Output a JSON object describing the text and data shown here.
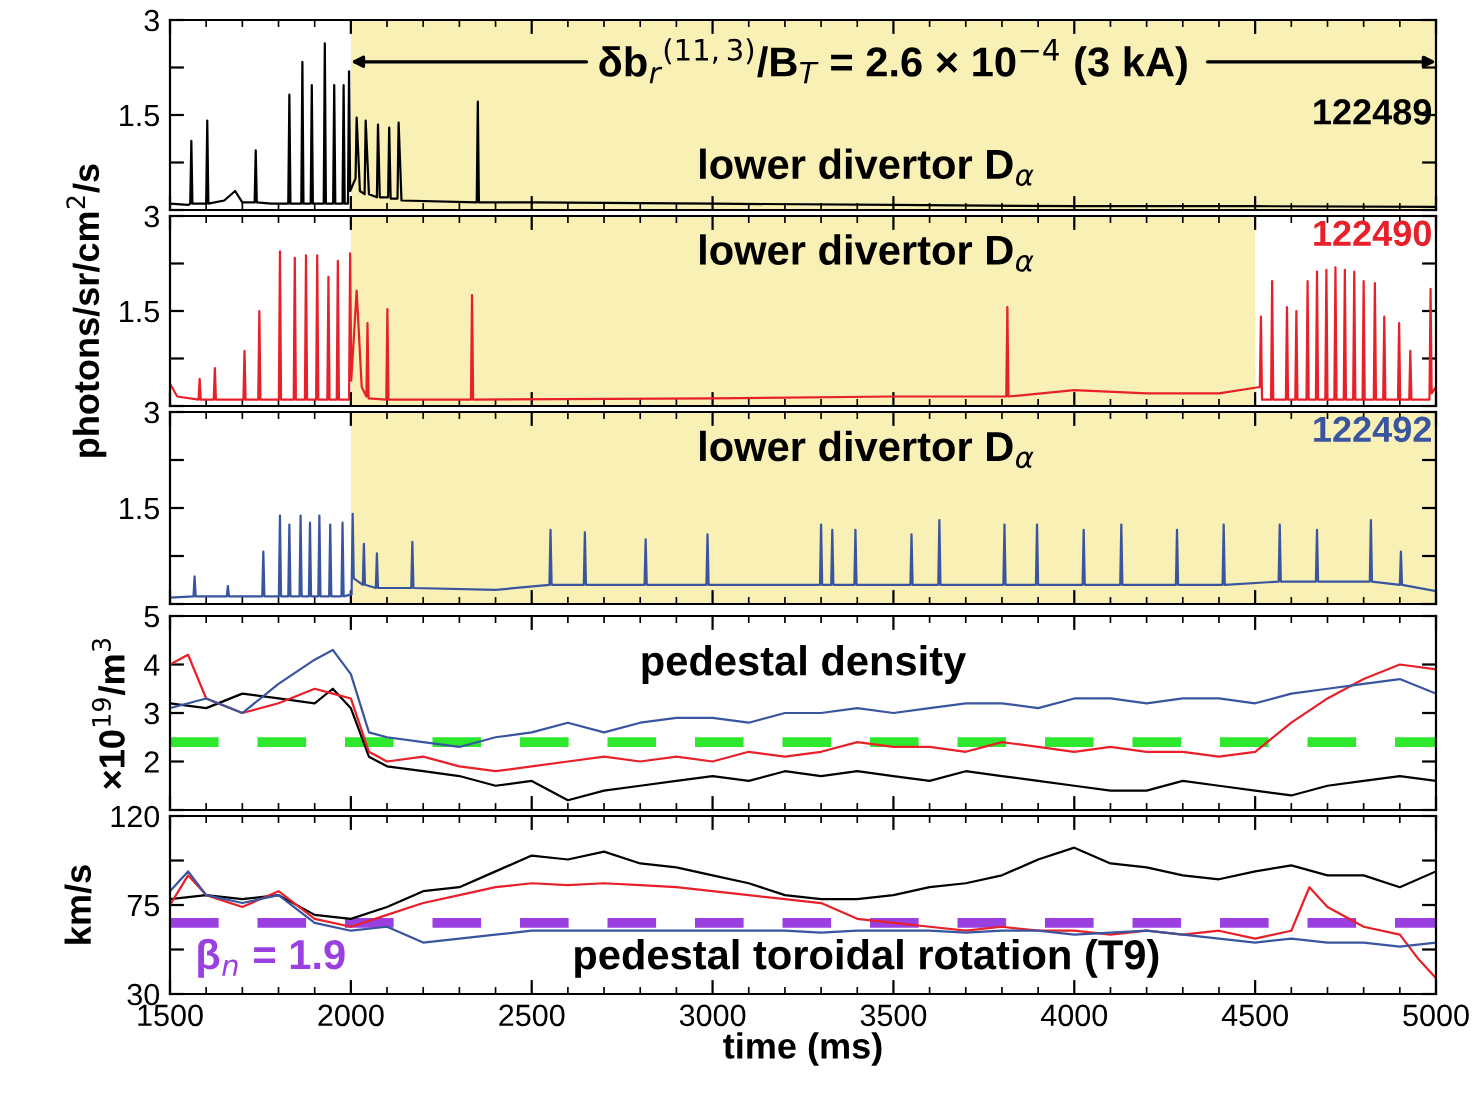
{
  "chart_data": [
    {
      "type": "line",
      "xlim": [
        1500,
        5000
      ],
      "ylim": [
        0,
        3
      ],
      "yticks": [
        {
          "value": 0,
          "label": null
        },
        {
          "value": 0.75,
          "label": null
        },
        1.5,
        {
          "value": 2.25,
          "label": null
        },
        3
      ],
      "tick_labels": "y",
      "grid": false,
      "legend": "right",
      "bands": [
        {
          "axis": "x",
          "from": 2000,
          "to": 5000,
          "color": "#f8f0b4",
          "label": "δb$_{r}$$^{(11,3)}$/B$_{T}$ = 2.6 × 10$^{−4}$ (3 kA)"
        }
      ],
      "annotations": [
        "lower divertor D$_{α}$"
      ],
      "series": [
        {
          "name": "122489",
          "color": "#000000",
          "x": [
            1500,
            1550,
            1556,
            1559,
            1562,
            1600,
            1603,
            1606,
            1650,
            1680,
            1700,
            1734,
            1737,
            1740,
            1780,
            1827,
            1830,
            1833,
            1863,
            1866,
            1869,
            1889,
            1892,
            1895,
            1925,
            1928,
            1931,
            1951,
            1954,
            1957,
            1977,
            1980,
            1983,
            1992,
            1995,
            1998,
            2013,
            2016,
            2025,
            2038,
            2041,
            2050,
            2072,
            2075,
            2080,
            2103,
            2106,
            2110,
            2129,
            2132,
            2140,
            2348,
            2351,
            2354,
            2500,
            3000,
            3500,
            4000,
            4500,
            5000
          ],
          "values": [
            0.1,
            0.08,
            0.1,
            1.09,
            0.1,
            0.1,
            1.41,
            0.1,
            0.15,
            0.3,
            0.12,
            0.12,
            0.94,
            0.12,
            0.1,
            0.1,
            1.82,
            0.1,
            0.1,
            2.34,
            0.1,
            0.1,
            1.97,
            0.1,
            0.1,
            2.63,
            0.1,
            0.1,
            1.97,
            0.1,
            0.1,
            1.97,
            0.1,
            0.1,
            2.19,
            0.3,
            0.5,
            1.46,
            0.3,
            0.25,
            1.41,
            0.25,
            0.2,
            1.35,
            0.2,
            0.2,
            1.3,
            0.18,
            0.18,
            1.38,
            0.15,
            0.12,
            1.71,
            0.12,
            0.12,
            0.1,
            0.08,
            0.06,
            0.06,
            0.05
          ]
        }
      ]
    },
    {
      "type": "line",
      "xlim": [
        1500,
        5000
      ],
      "ylim": [
        0,
        3
      ],
      "yticks": [
        {
          "value": 0,
          "label": null
        },
        {
          "value": 0.75,
          "label": null
        },
        1.5,
        {
          "value": 2.25,
          "label": null
        },
        3
      ],
      "tick_labels": "y",
      "grid": false,
      "legend": "top right",
      "ylabel": "photons/sr/cm$^{2}$/s",
      "bands": [
        {
          "axis": "x",
          "from": 2000,
          "to": 4500,
          "color": "#f8f0b4"
        }
      ],
      "annotations": [
        "lower divertor D$_{α}$"
      ],
      "series": [
        {
          "name": "122490",
          "color": "#e8202a",
          "x": [
            1500,
            1520,
            1579,
            1582,
            1585,
            1621,
            1624,
            1627,
            1703,
            1706,
            1709,
            1744,
            1747,
            1750,
            1801,
            1804,
            1807,
            1842,
            1845,
            1848,
            1873,
            1876,
            1879,
            1904,
            1907,
            1910,
            1935,
            1938,
            1941,
            1961,
            1964,
            1967,
            1995,
            1998,
            2001,
            2016,
            2030,
            2043,
            2046,
            2049,
            2098,
            2101,
            2104,
            2332,
            2335,
            2338,
            3000,
            3500,
            3812,
            3815,
            3818,
            4000,
            4200,
            4400,
            4513,
            4516,
            4519,
            4544,
            4547,
            4550,
            4585,
            4588,
            4591,
            4611,
            4614,
            4617,
            4642,
            4645,
            4648,
            4668,
            4671,
            4674,
            4694,
            4697,
            4700,
            4719,
            4722,
            4725,
            4745,
            4748,
            4751,
            4771,
            4774,
            4777,
            4797,
            4800,
            4803,
            4828,
            4831,
            4834,
            4854,
            4857,
            4860,
            4895,
            4898,
            4901,
            4926,
            4929,
            4932,
            4982,
            4985,
            4988,
            5000
          ],
          "values": [
            0.35,
            0.15,
            0.1,
            0.43,
            0.1,
            0.1,
            0.6,
            0.1,
            0.1,
            0.87,
            0.1,
            0.1,
            1.5,
            0.1,
            0.1,
            2.44,
            0.1,
            0.1,
            2.34,
            0.1,
            0.1,
            2.38,
            0.1,
            0.1,
            2.38,
            0.1,
            0.1,
            2.04,
            0.1,
            0.1,
            2.29,
            0.1,
            0.1,
            2.41,
            0.4,
            1.82,
            0.3,
            0.15,
            1.31,
            0.12,
            0.1,
            1.53,
            0.1,
            0.1,
            1.75,
            0.1,
            0.12,
            0.15,
            0.15,
            1.56,
            0.15,
            0.25,
            0.2,
            0.2,
            0.3,
            1.41,
            0.1,
            0.1,
            1.97,
            0.1,
            0.1,
            1.56,
            0.1,
            0.1,
            1.5,
            0.1,
            0.1,
            1.97,
            0.1,
            0.1,
            2.12,
            0.1,
            0.1,
            2.15,
            0.1,
            0.1,
            2.19,
            0.1,
            0.1,
            2.15,
            0.1,
            0.1,
            2.12,
            0.1,
            0.1,
            1.97,
            0.1,
            0.1,
            1.94,
            0.1,
            0.1,
            1.41,
            0.1,
            0.1,
            1.31,
            0.1,
            0.1,
            0.87,
            0.1,
            0.1,
            1.85,
            0.2,
            0.3
          ]
        }
      ]
    },
    {
      "type": "line",
      "xlim": [
        1500,
        5000
      ],
      "ylim": [
        0,
        3
      ],
      "yticks": [
        {
          "value": 0,
          "label": null
        },
        {
          "value": 0.75,
          "label": null
        },
        1.5,
        {
          "value": 2.25,
          "label": null
        },
        3
      ],
      "tick_labels": "y",
      "grid": false,
      "legend": "top right",
      "bands": [
        {
          "axis": "x",
          "from": 2000,
          "to": 5000,
          "color": "#f8f0b4"
        }
      ],
      "annotations": [
        "lower divertor D$_{α}$"
      ],
      "series": [
        {
          "name": "122492",
          "color": "#3a55a0",
          "x": [
            1500,
            1565,
            1568,
            1571,
            1657,
            1660,
            1663,
            1755,
            1758,
            1761,
            1801,
            1804,
            1807,
            1827,
            1830,
            1833,
            1858,
            1861,
            1864,
            1884,
            1887,
            1890,
            1910,
            1913,
            1916,
            1940,
            1943,
            1946,
            1974,
            1977,
            1980,
            2002,
            2005,
            2008,
            2033,
            2036,
            2039,
            2069,
            2072,
            2075,
            2167,
            2170,
            2173,
            2400,
            2549,
            2552,
            2555,
            2644,
            2647,
            2650,
            2812,
            2815,
            2818,
            2983,
            2986,
            2989,
            3297,
            3300,
            3303,
            3328,
            3331,
            3334,
            3392,
            3395,
            3398,
            3547,
            3550,
            3553,
            3624,
            3627,
            3630,
            3804,
            3807,
            3810,
            3894,
            3897,
            3900,
            4023,
            4026,
            4029,
            4127,
            4130,
            4133,
            4281,
            4284,
            4287,
            4410,
            4413,
            4416,
            4565,
            4568,
            4571,
            4668,
            4671,
            4674,
            4817,
            4820,
            4823,
            4900,
            4903,
            4906,
            5000
          ],
          "values": [
            0.1,
            0.12,
            0.43,
            0.12,
            0.12,
            0.28,
            0.12,
            0.12,
            0.82,
            0.12,
            0.12,
            1.38,
            0.12,
            0.12,
            1.24,
            0.12,
            0.12,
            1.38,
            0.12,
            0.12,
            1.27,
            0.12,
            0.12,
            1.38,
            0.12,
            0.12,
            1.24,
            0.12,
            0.12,
            1.27,
            0.12,
            0.15,
            1.41,
            0.4,
            0.3,
            0.94,
            0.3,
            0.25,
            0.79,
            0.25,
            0.25,
            0.97,
            0.25,
            0.22,
            0.3,
            1.16,
            0.3,
            0.3,
            1.12,
            0.3,
            0.3,
            1.01,
            0.3,
            0.3,
            1.09,
            0.3,
            0.3,
            1.24,
            0.3,
            0.3,
            1.16,
            0.3,
            0.3,
            1.16,
            0.3,
            0.3,
            1.09,
            0.3,
            0.3,
            1.31,
            0.3,
            0.3,
            1.24,
            0.3,
            0.3,
            1.24,
            0.3,
            0.3,
            1.16,
            0.3,
            0.3,
            1.24,
            0.3,
            0.3,
            1.16,
            0.3,
            0.3,
            1.24,
            0.3,
            0.35,
            1.24,
            0.35,
            0.35,
            1.16,
            0.35,
            0.35,
            1.31,
            0.35,
            0.3,
            0.82,
            0.3,
            0.2
          ]
        }
      ]
    },
    {
      "type": "line",
      "xlim": [
        1500,
        5000
      ],
      "ylim": [
        1,
        5
      ],
      "yticks": [
        {
          "value": 1,
          "label": null
        },
        2,
        3,
        4,
        5
      ],
      "tick_labels": "y",
      "grid": false,
      "legend": false,
      "ylabel": "×10$^{19}$/m$^{3}$",
      "ref_lines": [
        {
          "axis": "y",
          "value": 2.4,
          "color": "#2ee82e",
          "line_style": "dashed"
        }
      ],
      "annotations": [
        "pedestal density"
      ],
      "series": [
        {
          "color": "#000000",
          "x": [
            1500,
            1600,
            1700,
            1800,
            1900,
            1950,
            2000,
            2050,
            2100,
            2200,
            2300,
            2400,
            2500,
            2600,
            2700,
            2800,
            2900,
            3000,
            3100,
            3200,
            3300,
            3400,
            3500,
            3600,
            3700,
            3800,
            3900,
            4000,
            4100,
            4200,
            4300,
            4400,
            4500,
            4600,
            4700,
            4800,
            4900,
            5000
          ],
          "values": [
            3.2,
            3.1,
            3.4,
            3.3,
            3.2,
            3.5,
            3.1,
            2.1,
            1.9,
            1.8,
            1.7,
            1.5,
            1.6,
            1.2,
            1.4,
            1.5,
            1.6,
            1.7,
            1.6,
            1.8,
            1.7,
            1.8,
            1.7,
            1.6,
            1.8,
            1.7,
            1.6,
            1.5,
            1.4,
            1.4,
            1.6,
            1.5,
            1.4,
            1.3,
            1.5,
            1.6,
            1.7,
            1.6
          ]
        },
        {
          "color": "#e8202a",
          "x": [
            1500,
            1550,
            1600,
            1700,
            1800,
            1900,
            1950,
            2000,
            2050,
            2100,
            2200,
            2300,
            2400,
            2500,
            2600,
            2700,
            2800,
            2900,
            3000,
            3100,
            3200,
            3300,
            3400,
            3500,
            3600,
            3700,
            3800,
            3900,
            4000,
            4100,
            4200,
            4300,
            4400,
            4500,
            4600,
            4700,
            4800,
            4900,
            5000
          ],
          "values": [
            4.0,
            4.2,
            3.3,
            3.0,
            3.2,
            3.5,
            3.4,
            3.3,
            2.2,
            2.0,
            2.1,
            1.9,
            1.8,
            1.9,
            2.0,
            2.1,
            2.0,
            2.1,
            2.0,
            2.2,
            2.1,
            2.2,
            2.4,
            2.3,
            2.3,
            2.2,
            2.4,
            2.3,
            2.2,
            2.3,
            2.2,
            2.2,
            2.1,
            2.2,
            2.8,
            3.3,
            3.7,
            4.0,
            3.9
          ]
        },
        {
          "color": "#3a55a0",
          "x": [
            1500,
            1600,
            1700,
            1800,
            1900,
            1950,
            2000,
            2050,
            2100,
            2200,
            2300,
            2400,
            2500,
            2600,
            2700,
            2800,
            2900,
            3000,
            3100,
            3200,
            3300,
            3400,
            3500,
            3600,
            3700,
            3800,
            3900,
            4000,
            4100,
            4200,
            4300,
            4400,
            4500,
            4600,
            4700,
            4800,
            4900,
            5000
          ],
          "values": [
            3.1,
            3.3,
            3.0,
            3.6,
            4.1,
            4.3,
            3.8,
            2.6,
            2.5,
            2.4,
            2.3,
            2.5,
            2.6,
            2.8,
            2.6,
            2.8,
            2.9,
            2.9,
            2.8,
            3.0,
            3.0,
            3.1,
            3.0,
            3.1,
            3.2,
            3.2,
            3.1,
            3.3,
            3.3,
            3.2,
            3.3,
            3.3,
            3.2,
            3.4,
            3.5,
            3.6,
            3.7,
            3.4
          ]
        }
      ]
    },
    {
      "type": "line",
      "xlim": [
        1500,
        5000
      ],
      "ylim": [
        30,
        120
      ],
      "xticks": [
        1500,
        2000,
        2500,
        3000,
        3500,
        4000,
        4500,
        5000
      ],
      "yticks": [
        30,
        {
          "value": 52.5,
          "label": null
        },
        75,
        {
          "value": 97.5,
          "label": null
        },
        120
      ],
      "grid": false,
      "legend": false,
      "xlabel": "time (ms)",
      "ylabel": "km/s",
      "ref_lines": [
        {
          "axis": "y",
          "value": 66,
          "color": "#9b40e0",
          "line_style": "dashed"
        }
      ],
      "annotations": [
        "pedestal toroidal rotation (T9)",
        "β$_{n}$ = 1.9"
      ],
      "series": [
        {
          "color": "#000000",
          "x": [
            1500,
            1600,
            1700,
            1800,
            1900,
            2000,
            2100,
            2200,
            2300,
            2400,
            2500,
            2600,
            2700,
            2800,
            2900,
            3000,
            3100,
            3200,
            3300,
            3400,
            3500,
            3600,
            3700,
            3800,
            3900,
            4000,
            4100,
            4200,
            4300,
            4400,
            4500,
            4600,
            4700,
            4800,
            4900,
            5000
          ],
          "values": [
            78,
            80,
            78,
            80,
            70,
            68,
            74,
            82,
            84,
            92,
            100,
            98,
            102,
            96,
            94,
            90,
            86,
            80,
            78,
            78,
            80,
            84,
            86,
            90,
            98,
            104,
            96,
            94,
            90,
            88,
            92,
            95,
            90,
            90,
            84,
            92
          ]
        },
        {
          "color": "#e8202a",
          "x": [
            1500,
            1550,
            1600,
            1700,
            1800,
            1900,
            2000,
            2100,
            2200,
            2300,
            2400,
            2500,
            2600,
            2700,
            2800,
            2900,
            3000,
            3100,
            3200,
            3300,
            3400,
            3500,
            3600,
            3700,
            3800,
            3900,
            4000,
            4100,
            4200,
            4300,
            4400,
            4500,
            4600,
            4650,
            4700,
            4800,
            4900,
            4950,
            5000
          ],
          "values": [
            75,
            90,
            80,
            74,
            82,
            68,
            64,
            70,
            76,
            80,
            84,
            86,
            85,
            86,
            85,
            84,
            82,
            80,
            78,
            76,
            68,
            66,
            64,
            62,
            64,
            62,
            62,
            60,
            62,
            60,
            62,
            58,
            62,
            84,
            74,
            64,
            60,
            48,
            38
          ]
        },
        {
          "color": "#3a55a0",
          "x": [
            1500,
            1550,
            1600,
            1700,
            1800,
            1900,
            2000,
            2100,
            2200,
            2300,
            2400,
            2500,
            2600,
            2700,
            2800,
            2900,
            3000,
            3100,
            3200,
            3300,
            3400,
            3500,
            3600,
            3700,
            3800,
            3900,
            4000,
            4100,
            4200,
            4300,
            4400,
            4500,
            4600,
            4700,
            4800,
            4900,
            5000
          ],
          "values": [
            82,
            92,
            80,
            76,
            80,
            66,
            62,
            64,
            56,
            58,
            60,
            62,
            62,
            62,
            62,
            62,
            62,
            62,
            62,
            61,
            62,
            62,
            62,
            61,
            62,
            62,
            60,
            61,
            62,
            60,
            58,
            56,
            58,
            56,
            56,
            54,
            56
          ]
        }
      ]
    }
  ]
}
